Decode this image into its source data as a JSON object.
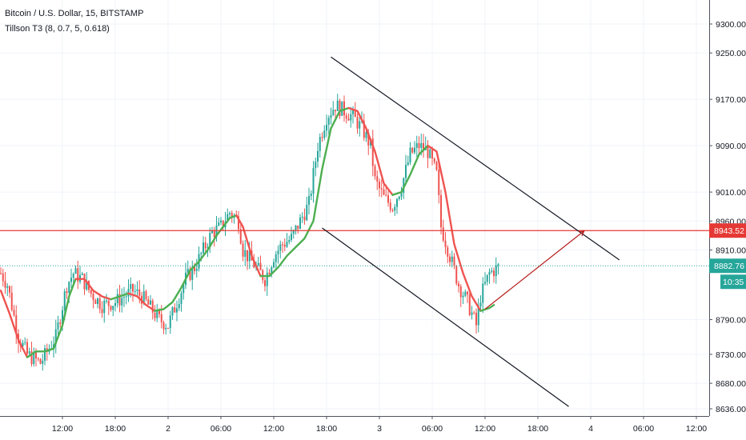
{
  "legend": {
    "symbol": "Bitcoin / U.S. Dollar, 15, BITSTAMP",
    "indicator": "Tillson T3 (8, 0.7, 5, 0.618)"
  },
  "colors": {
    "up": "#26a69a",
    "down": "#ef5350",
    "t3_up": "#4caf50",
    "t3_down": "#ef5350",
    "hline": "#e53935",
    "last_price": "#26a69a",
    "trendline": "#131722",
    "projection": "#b71c1c"
  },
  "chart_data": {
    "type": "candlestick",
    "ylim": [
      8625,
      9340
    ],
    "yticks": [
      {
        "value": 9300,
        "label": "9300.00"
      },
      {
        "value": 9250,
        "label": "9250.00"
      },
      {
        "value": 9170,
        "label": "9170.00"
      },
      {
        "value": 9090,
        "label": "9090.00"
      },
      {
        "value": 9010,
        "label": "9010.00"
      },
      {
        "value": 8960,
        "label": "8960.00"
      },
      {
        "value": 8910,
        "label": "8910.00"
      },
      {
        "value": 8790,
        "label": "8790.00"
      },
      {
        "value": 8730,
        "label": "8730.00"
      },
      {
        "value": 8680,
        "label": "8680.00"
      },
      {
        "value": 8636,
        "label": "8636.00"
      }
    ],
    "xticks": [
      {
        "bar": 28,
        "label": "12:00"
      },
      {
        "bar": 52,
        "label": "18:00"
      },
      {
        "bar": 76,
        "label": "2"
      },
      {
        "bar": 100,
        "label": "06:00"
      },
      {
        "bar": 124,
        "label": "12:00"
      },
      {
        "bar": 148,
        "label": "18:00"
      },
      {
        "bar": 172,
        "label": "3"
      },
      {
        "bar": 196,
        "label": "06:00"
      },
      {
        "bar": 220,
        "label": "12:00"
      },
      {
        "bar": 244,
        "label": "18:00"
      },
      {
        "bar": 268,
        "label": "4"
      },
      {
        "bar": 292,
        "label": "06:00"
      },
      {
        "bar": 316,
        "label": "12:00"
      }
    ],
    "path_points": [
      [
        0,
        8870
      ],
      [
        3,
        8850
      ],
      [
        8,
        8760
      ],
      [
        12,
        8730
      ],
      [
        18,
        8715
      ],
      [
        25,
        8760
      ],
      [
        30,
        8850
      ],
      [
        33,
        8870
      ],
      [
        37,
        8860
      ],
      [
        41,
        8835
      ],
      [
        46,
        8815
      ],
      [
        52,
        8820
      ],
      [
        56,
        8830
      ],
      [
        60,
        8840
      ],
      [
        64,
        8830
      ],
      [
        68,
        8810
      ],
      [
        72,
        8790
      ],
      [
        76,
        8780
      ],
      [
        80,
        8820
      ],
      [
        84,
        8860
      ],
      [
        88,
        8880
      ],
      [
        92,
        8910
      ],
      [
        96,
        8940
      ],
      [
        100,
        8950
      ],
      [
        104,
        8975
      ],
      [
        108,
        8960
      ],
      [
        110,
        8910
      ],
      [
        112,
        8900
      ],
      [
        116,
        8880
      ],
      [
        120,
        8860
      ],
      [
        124,
        8900
      ],
      [
        128,
        8920
      ],
      [
        132,
        8930
      ],
      [
        136,
        8960
      ],
      [
        140,
        8990
      ],
      [
        144,
        9090
      ],
      [
        148,
        9140
      ],
      [
        152,
        9160
      ],
      [
        156,
        9150
      ],
      [
        160,
        9140
      ],
      [
        164,
        9120
      ],
      [
        168,
        9090
      ],
      [
        170,
        9030
      ],
      [
        174,
        9000
      ],
      [
        178,
        8985
      ],
      [
        182,
        9020
      ],
      [
        186,
        9075
      ],
      [
        190,
        9090
      ],
      [
        194,
        9080
      ],
      [
        198,
        9040
      ],
      [
        200,
        8950
      ],
      [
        204,
        8900
      ],
      [
        208,
        8850
      ],
      [
        212,
        8820
      ],
      [
        216,
        8780
      ],
      [
        218,
        8830
      ],
      [
        222,
        8870
      ],
      [
        226,
        8880
      ]
    ],
    "t3": [
      [
        0,
        8840
      ],
      [
        4,
        8800
      ],
      [
        8,
        8755
      ],
      [
        12,
        8725
      ],
      [
        16,
        8735
      ],
      [
        20,
        8735
      ],
      [
        24,
        8740
      ],
      [
        28,
        8780
      ],
      [
        31,
        8830
      ],
      [
        34,
        8860
      ],
      [
        38,
        8860
      ],
      [
        42,
        8840
      ],
      [
        46,
        8830
      ],
      [
        50,
        8825
      ],
      [
        54,
        8830
      ],
      [
        58,
        8835
      ],
      [
        62,
        8830
      ],
      [
        66,
        8815
      ],
      [
        70,
        8805
      ],
      [
        74,
        8808
      ],
      [
        78,
        8820
      ],
      [
        82,
        8845
      ],
      [
        86,
        8875
      ],
      [
        90,
        8890
      ],
      [
        94,
        8910
      ],
      [
        98,
        8935
      ],
      [
        102,
        8955
      ],
      [
        104,
        8965
      ],
      [
        107,
        8970
      ],
      [
        110,
        8950
      ],
      [
        114,
        8900
      ],
      [
        118,
        8865
      ],
      [
        122,
        8865
      ],
      [
        126,
        8880
      ],
      [
        130,
        8900
      ],
      [
        134,
        8915
      ],
      [
        138,
        8930
      ],
      [
        142,
        8960
      ],
      [
        146,
        9050
      ],
      [
        150,
        9120
      ],
      [
        154,
        9150
      ],
      [
        158,
        9155
      ],
      [
        162,
        9150
      ],
      [
        166,
        9120
      ],
      [
        170,
        9080
      ],
      [
        174,
        9025
      ],
      [
        178,
        9005
      ],
      [
        182,
        9010
      ],
      [
        186,
        9040
      ],
      [
        190,
        9075
      ],
      [
        194,
        9090
      ],
      [
        198,
        9080
      ],
      [
        202,
        9010
      ],
      [
        206,
        8920
      ],
      [
        210,
        8870
      ],
      [
        214,
        8830
      ],
      [
        218,
        8805
      ],
      [
        222,
        8810
      ],
      [
        224,
        8815
      ]
    ],
    "t3_segments": [
      {
        "from": 0,
        "to": 12,
        "trend": "down"
      },
      {
        "from": 12,
        "to": 34,
        "trend": "up"
      },
      {
        "from": 34,
        "to": 50,
        "trend": "down"
      },
      {
        "from": 50,
        "to": 58,
        "trend": "up"
      },
      {
        "from": 58,
        "to": 70,
        "trend": "down"
      },
      {
        "from": 70,
        "to": 107,
        "trend": "up"
      },
      {
        "from": 107,
        "to": 118,
        "trend": "down"
      },
      {
        "from": 118,
        "to": 158,
        "trend": "up"
      },
      {
        "from": 158,
        "to": 178,
        "trend": "down"
      },
      {
        "from": 178,
        "to": 194,
        "trend": "up"
      },
      {
        "from": 194,
        "to": 218,
        "trend": "down"
      },
      {
        "from": 218,
        "to": 224,
        "trend": "up"
      }
    ],
    "horizontal_line": {
      "value": 8943.52,
      "label": "8943.52"
    },
    "last_price": {
      "value": 8882.76,
      "label": "8882.76",
      "countdown": "10:35"
    },
    "trendlines": [
      {
        "from": [
          150,
          9243
        ],
        "to": [
          281,
          8893
        ]
      },
      {
        "from": [
          146,
          8948
        ],
        "to": [
          258,
          8640
        ]
      }
    ],
    "projection": {
      "from": [
        220,
        8808
      ],
      "to": [
        265,
        8943
      ]
    }
  }
}
